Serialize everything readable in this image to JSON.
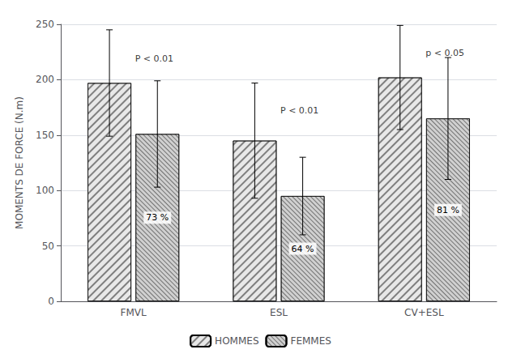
{
  "chart_data": {
    "type": "bar",
    "categories": [
      "FMVL",
      "ESL",
      "CV+ESL"
    ],
    "series": [
      {
        "name": "HOMMES",
        "color": "#e8e8e8",
        "values": [
          197,
          145,
          202
        ],
        "errors": [
          48,
          52,
          47
        ]
      },
      {
        "name": "FEMMES",
        "color": "#d0d0d0",
        "values": [
          151,
          95,
          165
        ],
        "errors": [
          48,
          35,
          55
        ]
      }
    ],
    "annotations": [
      {
        "text": "73 %",
        "category": "FMVL",
        "series": "FEMMES"
      },
      {
        "text": "64 %",
        "category": "ESL",
        "series": "FEMMES"
      },
      {
        "text": "81 %",
        "category": "CV+ESL",
        "series": "FEMMES"
      },
      {
        "text": "P < 0.01",
        "category": "FMVL",
        "y": 215
      },
      {
        "text": "P < 0.01",
        "category": "ESL",
        "y": 168
      },
      {
        "text": "p < 0.05",
        "category": "CV+ESL",
        "y": 220
      }
    ],
    "ylabel": "MOMENTS DE FORCE (N.m)",
    "ylim": [
      0,
      250
    ],
    "yticks": [
      0,
      50,
      100,
      150,
      200,
      250
    ],
    "grid": true,
    "legend": "bottom"
  }
}
